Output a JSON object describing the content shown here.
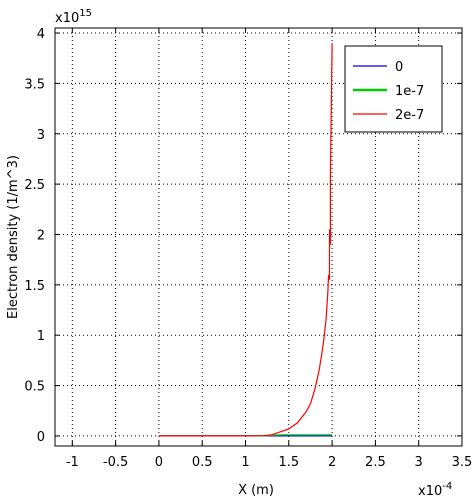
{
  "chart_data": {
    "type": "line",
    "xlabel": "X (m)",
    "ylabel": "Electron density (1/m^3)",
    "x_scale_label": "x10",
    "x_scale_exp": "-4",
    "y_scale_label": "x10",
    "y_scale_exp": "15",
    "xlim": [
      -1.2,
      3.5
    ],
    "ylim": [
      -0.1,
      4.05
    ],
    "x_ticks": [
      -1,
      -0.5,
      0,
      0.5,
      1,
      1.5,
      2,
      2.5,
      3,
      3.5
    ],
    "x_tick_labels": [
      "-1",
      "-0.5",
      "0",
      "0.5",
      "1",
      "1.5",
      "2",
      "2.5",
      "3",
      "3.5"
    ],
    "y_ticks": [
      0,
      0.5,
      1,
      1.5,
      2,
      2.5,
      3,
      3.5,
      4
    ],
    "y_tick_labels": [
      "0",
      "0.5",
      "1",
      "1.5",
      "2",
      "2.5",
      "3",
      "3.5",
      "4"
    ],
    "grid": true,
    "legend_position": "top-right",
    "series": [
      {
        "name": "0",
        "color": "#0000ff",
        "points": [
          [
            0,
            0
          ],
          [
            2,
            0
          ]
        ]
      },
      {
        "name": "1e-7",
        "color": "#00cc00",
        "points": [
          [
            0,
            0
          ],
          [
            1.2,
            0.0
          ],
          [
            1.4,
            0.01
          ],
          [
            1.6,
            0.01
          ],
          [
            1.8,
            0.01
          ],
          [
            2,
            0.01
          ]
        ]
      },
      {
        "name": "2e-7",
        "color": "#ff0000",
        "points": [
          [
            0,
            0
          ],
          [
            1.0,
            0
          ],
          [
            1.2,
            0.002
          ],
          [
            1.3,
            0.01
          ],
          [
            1.4,
            0.04
          ],
          [
            1.5,
            0.07
          ],
          [
            1.6,
            0.13
          ],
          [
            1.7,
            0.24
          ],
          [
            1.75,
            0.32
          ],
          [
            1.8,
            0.46
          ],
          [
            1.85,
            0.65
          ],
          [
            1.9,
            0.92
          ],
          [
            1.93,
            1.15
          ],
          [
            1.95,
            1.42
          ],
          [
            1.96,
            1.6
          ],
          [
            1.97,
            1.55
          ],
          [
            1.97,
            2.05
          ],
          [
            1.98,
            1.9
          ],
          [
            1.98,
            2.6
          ],
          [
            1.99,
            3.2
          ],
          [
            2.0,
            3.9
          ]
        ]
      }
    ]
  }
}
